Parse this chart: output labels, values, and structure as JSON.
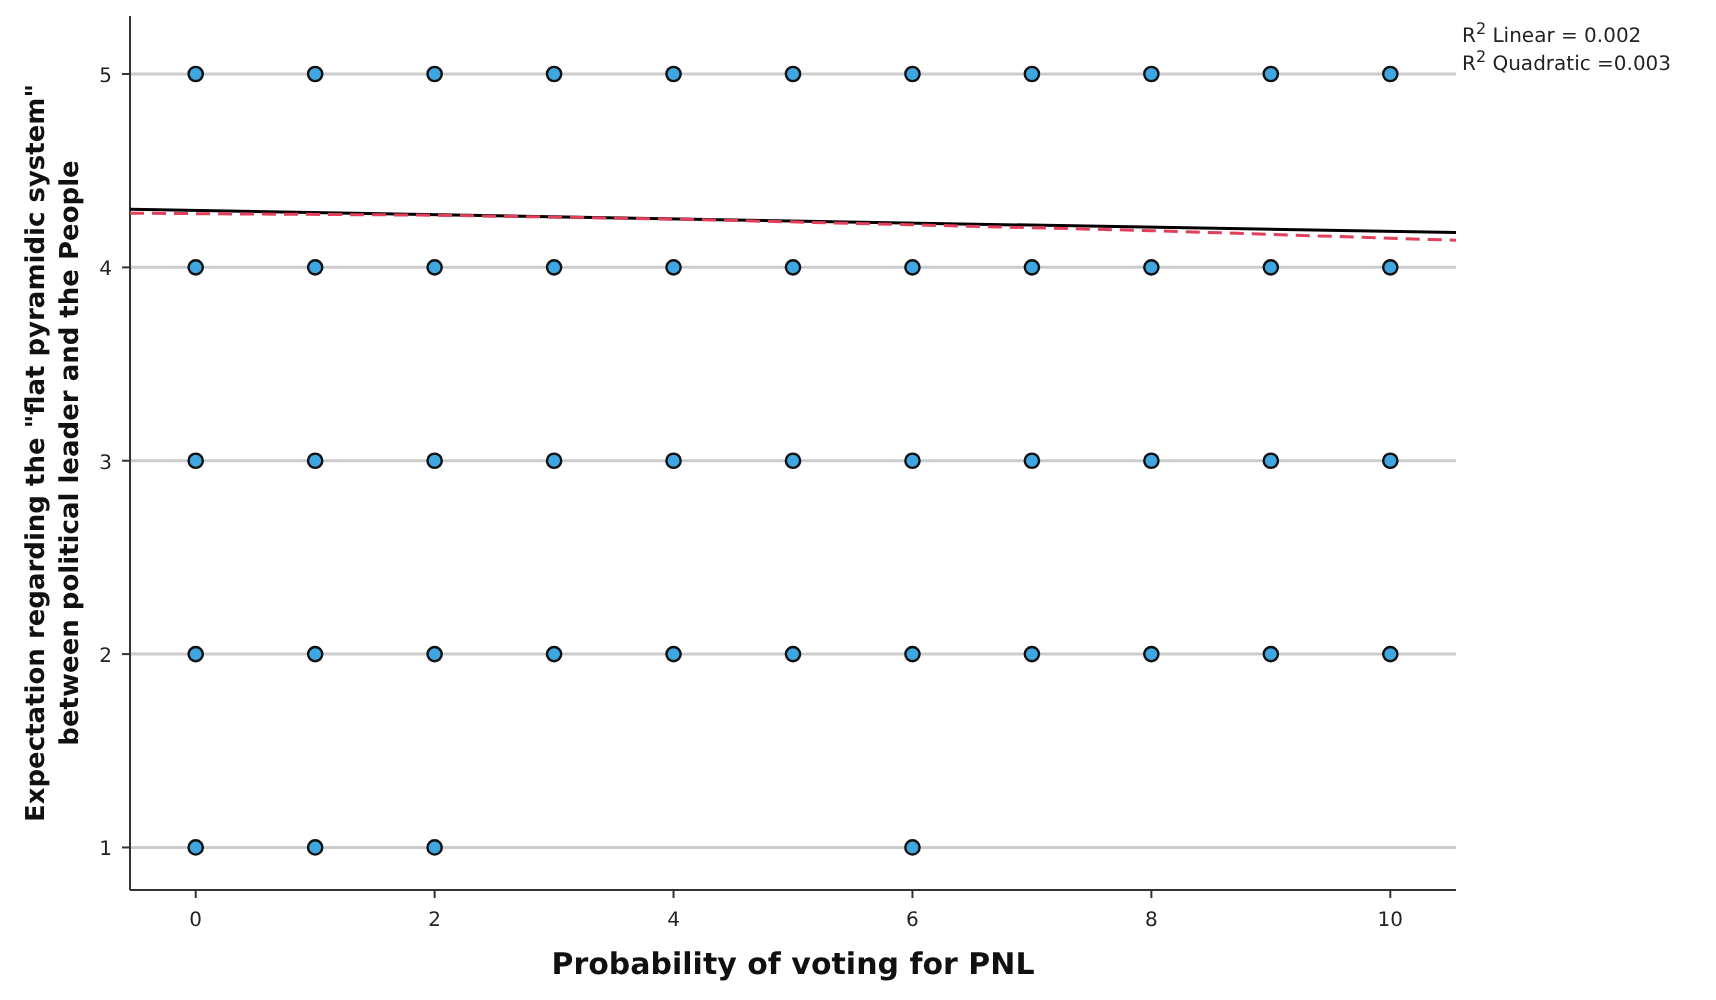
{
  "chart_data": {
    "type": "scatter",
    "xlabel": "Probability of voting for PNL",
    "ylabel": "Expectation regarding the \"flat pyramidic system\" between political leader and the People",
    "xlim": [
      -0.55,
      10.55
    ],
    "xticks": [
      0,
      2,
      4,
      6,
      8,
      10
    ],
    "ylim": [
      0.78,
      5.3
    ],
    "yticks": [
      1,
      2,
      3,
      4,
      5
    ],
    "grid": "y",
    "marker": "circle",
    "annotations": [
      "R$^{2}$ Linear = 0.002",
      "R$^{2}$ Quadratic =0.003"
    ],
    "series": [
      {
        "color": "#3ea6e0",
        "x": [
          0,
          1,
          2,
          3,
          4,
          5,
          6,
          7,
          8,
          9,
          10,
          0,
          1,
          2,
          3,
          4,
          5,
          6,
          7,
          8,
          9,
          10,
          0,
          1,
          2,
          3,
          4,
          5,
          6,
          7,
          8,
          9,
          10,
          0,
          1,
          2,
          3,
          4,
          5,
          6,
          7,
          8,
          9,
          10,
          0,
          1,
          2,
          6
        ],
        "values": [
          5,
          5,
          5,
          5,
          5,
          5,
          5,
          5,
          5,
          5,
          5,
          4,
          4,
          4,
          4,
          4,
          4,
          4,
          4,
          4,
          4,
          4,
          3,
          3,
          3,
          3,
          3,
          3,
          3,
          3,
          3,
          3,
          3,
          2,
          2,
          2,
          2,
          2,
          2,
          2,
          2,
          2,
          2,
          2,
          1,
          1,
          1,
          1
        ]
      },
      {
        "type": "line",
        "color": "#000000",
        "line_style": "solid",
        "x": [
          -0.55,
          10.55
        ],
        "values": [
          4.3,
          4.18
        ],
        "marker": "none"
      },
      {
        "type": "line",
        "color": "#e0405a",
        "line_style": "dashed",
        "x": [
          -0.55,
          2,
          4,
          6,
          8,
          10.55
        ],
        "values": [
          4.28,
          4.27,
          4.25,
          4.22,
          4.19,
          4.14
        ],
        "marker": "none"
      }
    ]
  }
}
